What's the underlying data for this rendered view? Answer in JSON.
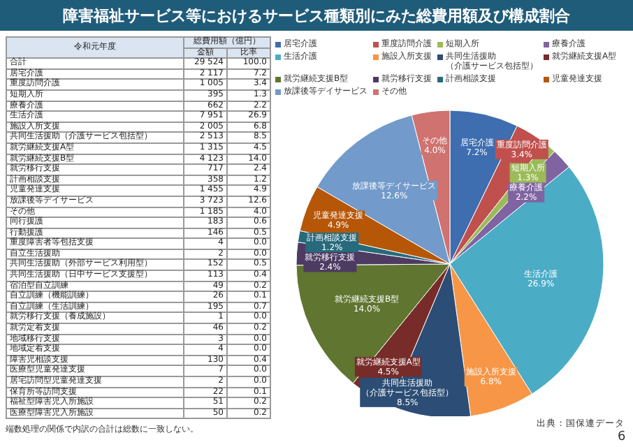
{
  "chart_data": [
    {
      "type": "pie",
      "title": "障害福祉サービス等におけるサービス種類別にみた総費用額及び構成割合",
      "categories": [
        "居宅介護",
        "重度訪問介護",
        "短期入所",
        "療養介護",
        "生活介護",
        "施設入所支援",
        "共同生活援助（介護サービス包括型）",
        "就労継続支援A型",
        "就労継続支援B型",
        "就労移行支援",
        "計画相談支援",
        "児童発達支援",
        "放課後等デイサービス",
        "その他"
      ],
      "values": [
        7.2,
        3.4,
        1.3,
        2.2,
        26.9,
        6.8,
        8.5,
        4.5,
        14.0,
        2.4,
        1.2,
        4.9,
        12.6,
        4.0
      ],
      "value_labels": [
        "7.2%",
        "3.4%",
        "1.3%",
        "2.2%",
        "26.9%",
        "6.8%",
        "8.5%",
        "4.5%",
        "14.0%",
        "2.4%",
        "1.2%",
        "4.9%",
        "12.6%",
        "4.0%"
      ],
      "colors": [
        "#3e6db0",
        "#c0504d",
        "#9bbb59",
        "#8064a2",
        "#4bacc6",
        "#f79646",
        "#2c4d75",
        "#772c2a",
        "#5f7530",
        "#4d3b62",
        "#276a7c",
        "#b65708",
        "#729aca",
        "#d0726f"
      ],
      "legend": "top",
      "annotations": [
        "出典：国保連データ",
        "6"
      ]
    },
    {
      "type": "other",
      "ylabel": "令和元年度",
      "xlabel": "総費用額（億円）",
      "categories": [
        "合計",
        "居宅介護",
        "重度訪問介護",
        "短期入所",
        "療養介護",
        "生活介護",
        "施設入所支援",
        "共同生活援助（介護サービス包括型）",
        "就労継続支援A型",
        "就労継続支援B型",
        "就労移行支援",
        "計画相談支援",
        "児童発達支援",
        "放課後等デイサービス",
        "その他",
        "同行援護",
        "行動援護",
        "重度障害者等包括支援",
        "自立生活援助",
        "共同生活援助（外部サービス利用型）",
        "共同生活援助（日中サービス支援型）",
        "宿泊型自立訓練",
        "自立訓練（機能訓練）",
        "自立訓練（生活訓練）",
        "就労移行支援（養成施設）",
        "就労定着支援",
        "地域移行支援",
        "地域定着支援",
        "障害児相談支援",
        "医療型児童発達支援",
        "居宅訪問型児童発達支援",
        "保育所等訪問支援",
        "福祉型障害児入所施設",
        "医療型障害児入所施設"
      ],
      "series": [
        {
          "name": "金額",
          "values": [
            29524,
            2117,
            1005,
            395,
            662,
            7951,
            2005,
            2513,
            1315,
            4123,
            717,
            358,
            1455,
            3723,
            1185,
            183,
            146,
            4,
            2,
            152,
            113,
            49,
            26,
            195,
            1,
            46,
            3,
            4,
            130,
            7,
            2,
            22,
            51,
            50
          ]
        },
        {
          "name": "比率",
          "values": [
            100.0,
            7.2,
            3.4,
            1.3,
            2.2,
            26.9,
            6.8,
            8.5,
            4.5,
            14.0,
            2.4,
            1.2,
            4.9,
            12.6,
            4.0,
            0.6,
            0.5,
            0.0,
            0.0,
            0.5,
            0.4,
            0.2,
            0.1,
            0.7,
            0.0,
            0.2,
            0.0,
            0.0,
            0.4,
            0.0,
            0.0,
            0.1,
            0.2,
            0.2
          ],
          "value_labels": [
            "100.0",
            "7.2",
            "3.4",
            "1.3",
            "2.2",
            "26.9",
            "6.8",
            "8.5",
            "4.5",
            "14.0",
            "2.4",
            "1.2",
            "4.9",
            "12.6",
            "4.0",
            "0.6",
            "0.5",
            "0.0",
            "0.0",
            "0.5",
            "0.4",
            "0.2",
            "0.1",
            "0.7",
            "0.0",
            "0.2",
            "0.0",
            "0.0",
            "0.4",
            "0.0",
            "0.0",
            "0.1",
            "0.2",
            "0.2"
          ]
        }
      ],
      "data_labels": true,
      "annotations": [
        "端数処理の関係で内訳の合計は総数に一致しない。"
      ]
    }
  ]
}
